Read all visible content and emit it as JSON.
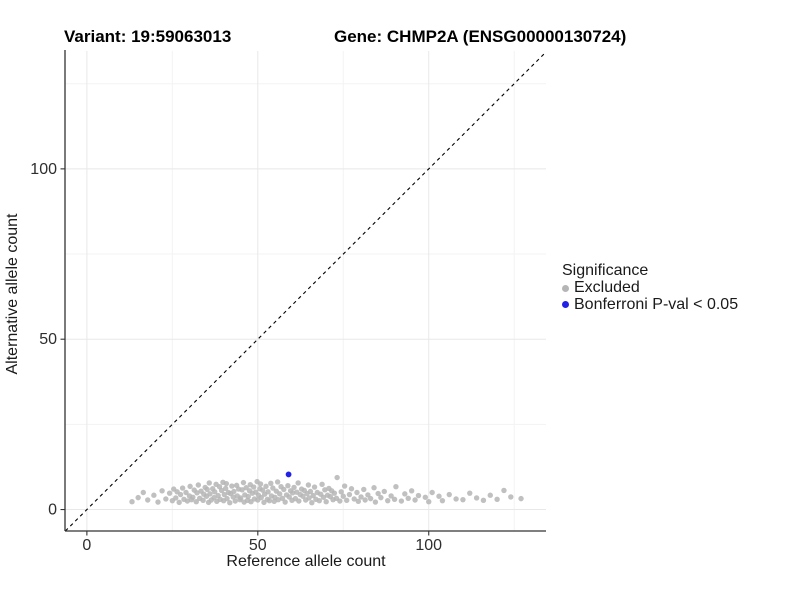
{
  "titles": {
    "variant": "Variant: 19:59063013",
    "gene": "Gene: CHMP2A (ENSG00000130724)"
  },
  "legend": {
    "title": "Significance",
    "items": [
      {
        "label": "Excluded",
        "color": "#b5b5b5"
      },
      {
        "label": "Bonferroni P-val < 0.05",
        "color": "#2222e6"
      }
    ]
  },
  "chart_data": {
    "type": "scatter",
    "title": "Variant: 19:59063013  /  Gene: CHMP2A (ENSG00000130724)",
    "xlabel": "Reference allele count",
    "ylabel": "Alternative allele count",
    "xlim": [
      -6.4,
      134.3
    ],
    "ylim": [
      -6.3,
      134.6
    ],
    "x_ticks": [
      0,
      50,
      100
    ],
    "y_ticks": [
      0,
      50,
      100
    ],
    "minor_grid": [
      25,
      75,
      125
    ],
    "grid_color_major": "#e8e8e8",
    "grid_color_minor": "#f3f3f3",
    "axis_color": "#333333",
    "identity_line": {
      "shown": true,
      "style": "dashed",
      "color": "#000000"
    },
    "legend_position": "right",
    "series": [
      {
        "name": "Excluded",
        "color": "#b5b5b5",
        "radius": 2.7,
        "opacity": 0.85,
        "points": [
          [
            13.2,
            2.3
          ],
          [
            15,
            3.5
          ],
          [
            16.5,
            5
          ],
          [
            17.8,
            2.8
          ],
          [
            19.6,
            4.2
          ],
          [
            20.8,
            2.2
          ],
          [
            22,
            5.5
          ],
          [
            23.1,
            3.1
          ],
          [
            24.2,
            4.8
          ],
          [
            25,
            2.6
          ],
          [
            25.4,
            6
          ],
          [
            26,
            3.4
          ],
          [
            26.4,
            5.2
          ],
          [
            27,
            2.1
          ],
          [
            27.4,
            4.4
          ],
          [
            28,
            6.3
          ],
          [
            28.4,
            3
          ],
          [
            29,
            5
          ],
          [
            29.4,
            2.5
          ],
          [
            30,
            4
          ],
          [
            30.2,
            6.8
          ],
          [
            30.6,
            2.9
          ],
          [
            31,
            3.6
          ],
          [
            31.4,
            5.7
          ],
          [
            32,
            2.3
          ],
          [
            32.2,
            4.9
          ],
          [
            32.6,
            7.2
          ],
          [
            33,
            3.3
          ],
          [
            33.4,
            5.4
          ],
          [
            34,
            2.7
          ],
          [
            34.2,
            4.5
          ],
          [
            34.6,
            6.5
          ],
          [
            35,
            3.9
          ],
          [
            35.2,
            5.9
          ],
          [
            35.6,
            2.1
          ],
          [
            35.8,
            7.8
          ],
          [
            36,
            4.6
          ],
          [
            36.4,
            2.8
          ],
          [
            36.8,
            6.1
          ],
          [
            37.2,
            3.5
          ],
          [
            37.4,
            5.2
          ],
          [
            37.8,
            7.4
          ],
          [
            38,
            2.4
          ],
          [
            38.4,
            4.1
          ],
          [
            38.8,
            6.7
          ],
          [
            39,
            3
          ],
          [
            39.4,
            5.6
          ],
          [
            39.8,
            8
          ],
          [
            40,
            2.6
          ],
          [
            40.2,
            4.4
          ],
          [
            40.6,
            6.2
          ],
          [
            40.8,
            7.6
          ],
          [
            41,
            3.2
          ],
          [
            41.4,
            5
          ],
          [
            41.8,
            2
          ],
          [
            42,
            4.7
          ],
          [
            42.4,
            6.9
          ],
          [
            42.8,
            3.7
          ],
          [
            43,
            5.3
          ],
          [
            43.4,
            2.5
          ],
          [
            43.8,
            7.1
          ],
          [
            44,
            4
          ],
          [
            44.4,
            6
          ],
          [
            44.8,
            2.9
          ],
          [
            45,
            3.4
          ],
          [
            45.4,
            5.8
          ],
          [
            45.8,
            7.9
          ],
          [
            46,
            2.2
          ],
          [
            46.2,
            4.3
          ],
          [
            46.6,
            6.4
          ],
          [
            47,
            2.7
          ],
          [
            47.2,
            3.8
          ],
          [
            47.6,
            5.5
          ],
          [
            47.8,
            7.3
          ],
          [
            48,
            2.3
          ],
          [
            48.4,
            4.8
          ],
          [
            48.8,
            6.6
          ],
          [
            49,
            3.1
          ],
          [
            49.4,
            5.1
          ],
          [
            49.8,
            8.2
          ],
          [
            50,
            2.8
          ],
          [
            50.2,
            4.2
          ],
          [
            50.6,
            6.1
          ],
          [
            50.8,
            7.5
          ],
          [
            51,
            3.5
          ],
          [
            51.4,
            5.7
          ],
          [
            51.8,
            2.1
          ],
          [
            52,
            4.5
          ],
          [
            52.4,
            6.8
          ],
          [
            52.8,
            3
          ],
          [
            53,
            5.2
          ],
          [
            53.4,
            2.6
          ],
          [
            53.8,
            7.7
          ],
          [
            54,
            4
          ],
          [
            54.4,
            6.3
          ],
          [
            54.8,
            2.4
          ],
          [
            55,
            3.6
          ],
          [
            55.4,
            5.4
          ],
          [
            55.8,
            8.1
          ],
          [
            56,
            2.9
          ],
          [
            56.4,
            4.6
          ],
          [
            56.8,
            6.7
          ],
          [
            57.2,
            3.3
          ],
          [
            57.6,
            5.9
          ],
          [
            58,
            2.2
          ],
          [
            58.4,
            4.3
          ],
          [
            58.8,
            7
          ],
          [
            59.2,
            3.7
          ],
          [
            59.6,
            5.5
          ],
          [
            60,
            2.7
          ],
          [
            60.2,
            4.9
          ],
          [
            60.6,
            6.5
          ],
          [
            61,
            3.2
          ],
          [
            61.4,
            5.1
          ],
          [
            61.8,
            7.8
          ],
          [
            62,
            2.5
          ],
          [
            62.4,
            4.4
          ],
          [
            62.8,
            6
          ],
          [
            63.2,
            3.9
          ],
          [
            63.6,
            5.6
          ],
          [
            64,
            2.8
          ],
          [
            64.4,
            4.7
          ],
          [
            64.8,
            7.2
          ],
          [
            65,
            3.4
          ],
          [
            65.4,
            5.3
          ],
          [
            65.8,
            2
          ],
          [
            66.2,
            4.1
          ],
          [
            66.6,
            6.6
          ],
          [
            67,
            3
          ],
          [
            67.4,
            5
          ],
          [
            68,
            2.6
          ],
          [
            68.4,
            4.5
          ],
          [
            68.8,
            7.4
          ],
          [
            69.2,
            3.6
          ],
          [
            69.6,
            5.8
          ],
          [
            70,
            2.3
          ],
          [
            70.4,
            4.2
          ],
          [
            70.8,
            6.2
          ],
          [
            71.2,
            3.8
          ],
          [
            71.6,
            5.5
          ],
          [
            72,
            2.9
          ],
          [
            72.4,
            4.8
          ],
          [
            73,
            3.3
          ],
          [
            73.2,
            9.4
          ],
          [
            74,
            2.5
          ],
          [
            74.4,
            5.2
          ],
          [
            75,
            3.9
          ],
          [
            75.4,
            6.9
          ],
          [
            76,
            2.7
          ],
          [
            76.8,
            4.4
          ],
          [
            77.4,
            6.1
          ],
          [
            78.2,
            3.1
          ],
          [
            79,
            5
          ],
          [
            79.4,
            2.4
          ],
          [
            80.2,
            3.7
          ],
          [
            81,
            5.9
          ],
          [
            81.4,
            2.8
          ],
          [
            82.2,
            4.3
          ],
          [
            83,
            3.2
          ],
          [
            84,
            6.4
          ],
          [
            84.4,
            2.2
          ],
          [
            85.2,
            4.7
          ],
          [
            86,
            3.5
          ],
          [
            87,
            5.3
          ],
          [
            88,
            2.6
          ],
          [
            89,
            4
          ],
          [
            90,
            3
          ],
          [
            90.4,
            6.7
          ],
          [
            92,
            2.5
          ],
          [
            93,
            4.6
          ],
          [
            94,
            3.3
          ],
          [
            95,
            5.5
          ],
          [
            96,
            2.8
          ],
          [
            97,
            4.1
          ],
          [
            99,
            3.6
          ],
          [
            100,
            2.3
          ],
          [
            101,
            5
          ],
          [
            103,
            3.9
          ],
          [
            104,
            2.6
          ],
          [
            106,
            4.4
          ],
          [
            108,
            3.1
          ],
          [
            110,
            2.9
          ],
          [
            112,
            4.8
          ],
          [
            114,
            3.4
          ],
          [
            116,
            2.7
          ],
          [
            118,
            4.2
          ],
          [
            120,
            3
          ],
          [
            122,
            5.6
          ],
          [
            124,
            3.7
          ],
          [
            127,
            3.2
          ]
        ]
      },
      {
        "name": "Bonferroni P-val < 0.05",
        "color": "#2222e6",
        "radius": 2.9,
        "opacity": 1,
        "points": [
          [
            59,
            10.3
          ]
        ]
      }
    ]
  }
}
